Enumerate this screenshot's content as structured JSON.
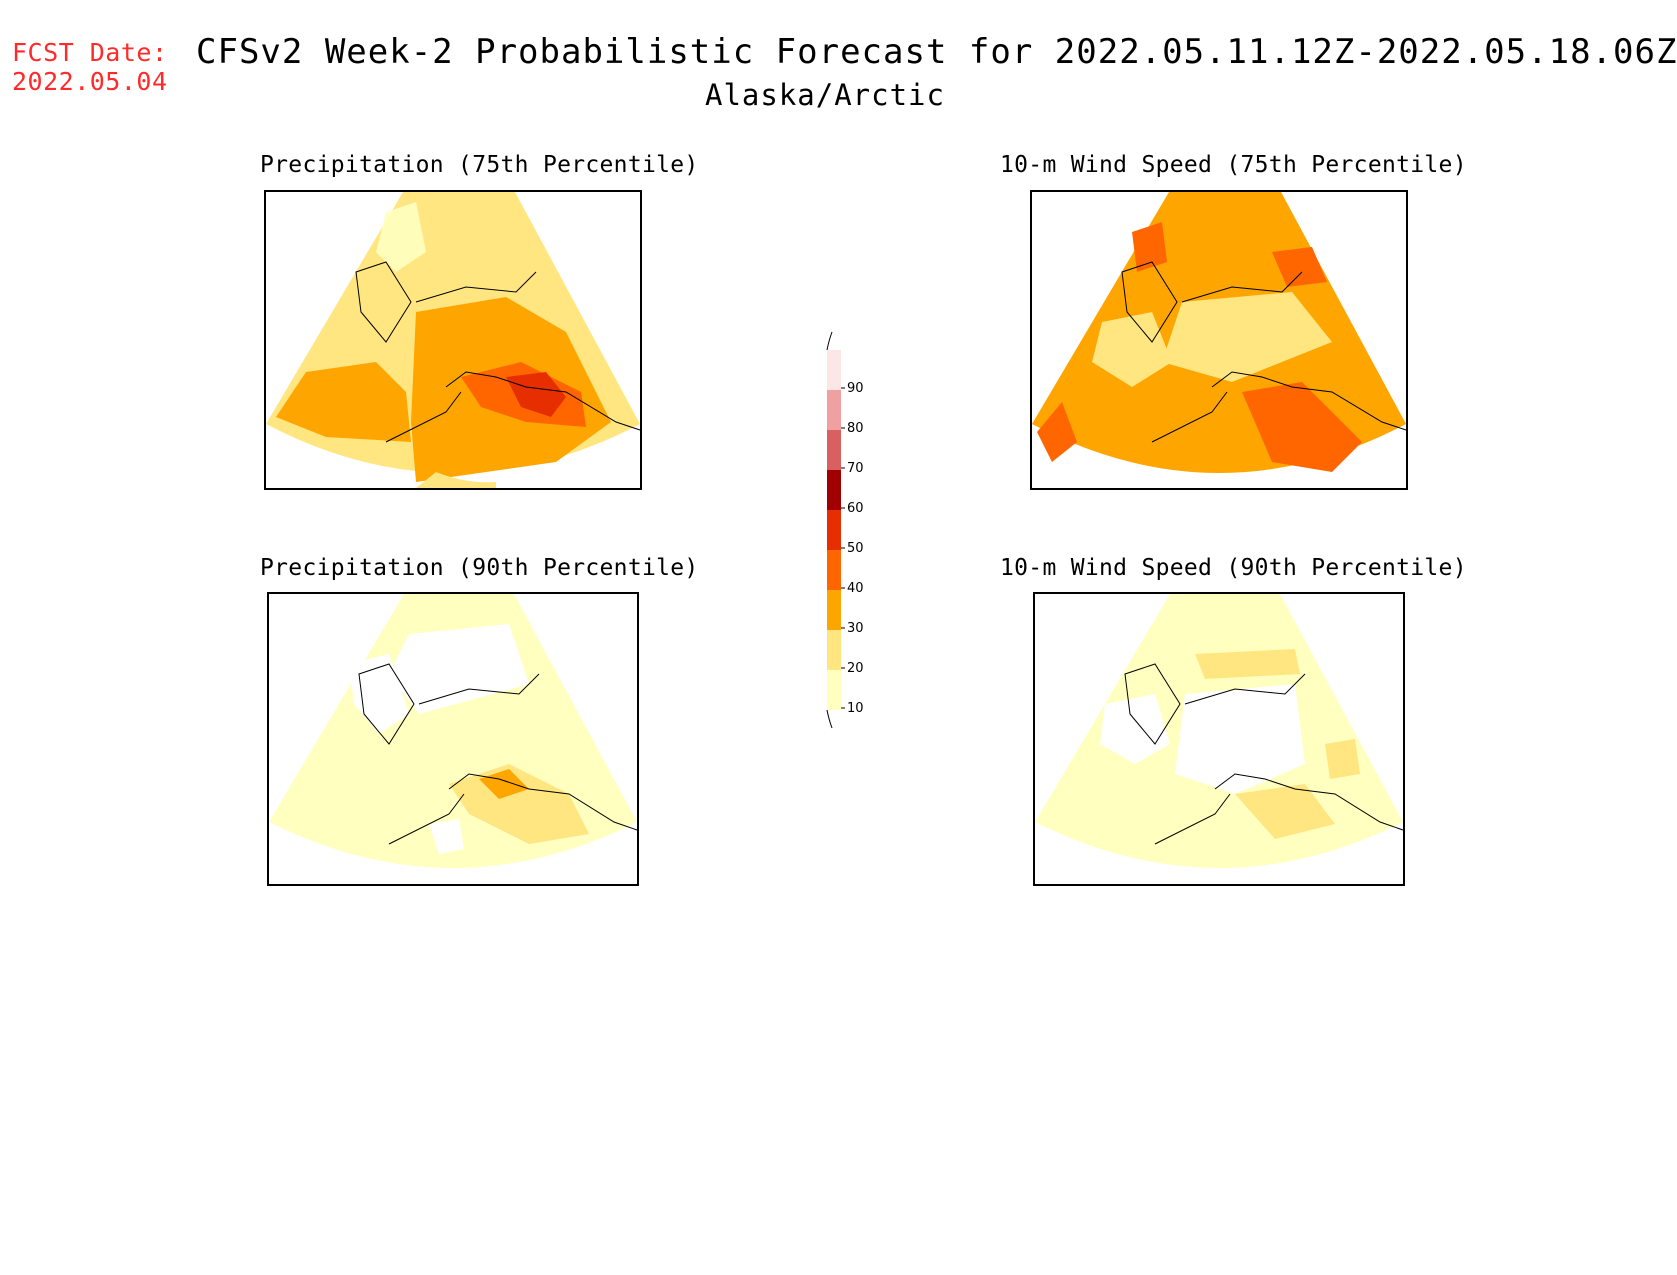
{
  "header": {
    "fcst_label": "FCST Date:",
    "fcst_date": "2022.05.04",
    "title": "CFSv2 Week-2 Probabilistic Forecast for 2022.05.11.12Z-2022.05.18.06Z",
    "region": "Alaska/Arctic"
  },
  "panels": [
    {
      "title": "Precipitation (75th Percentile)",
      "field_level": "high"
    },
    {
      "title": "10-m Wind Speed (75th Percentile)",
      "field_level": "high"
    },
    {
      "title": "Precipitation (90th Percentile)",
      "field_level": "low"
    },
    {
      "title": "10-m Wind Speed (90th Percentile)",
      "field_level": "low"
    }
  ],
  "colorbar": {
    "ticks": [
      "10",
      "20",
      "30",
      "40",
      "50",
      "60",
      "70",
      "80",
      "90"
    ],
    "colors": [
      "#ffffc0",
      "#ffe680",
      "#ffa500",
      "#ff6600",
      "#e62e00",
      "#a00000",
      "#d86060",
      "#f0a0a0",
      "#fce6e6"
    ]
  },
  "palette": {
    "c10": "#ffffc0",
    "c20": "#ffe680",
    "c30": "#ffa500",
    "c40": "#ff6600",
    "c50": "#e62e00",
    "c60": "#a00000"
  }
}
